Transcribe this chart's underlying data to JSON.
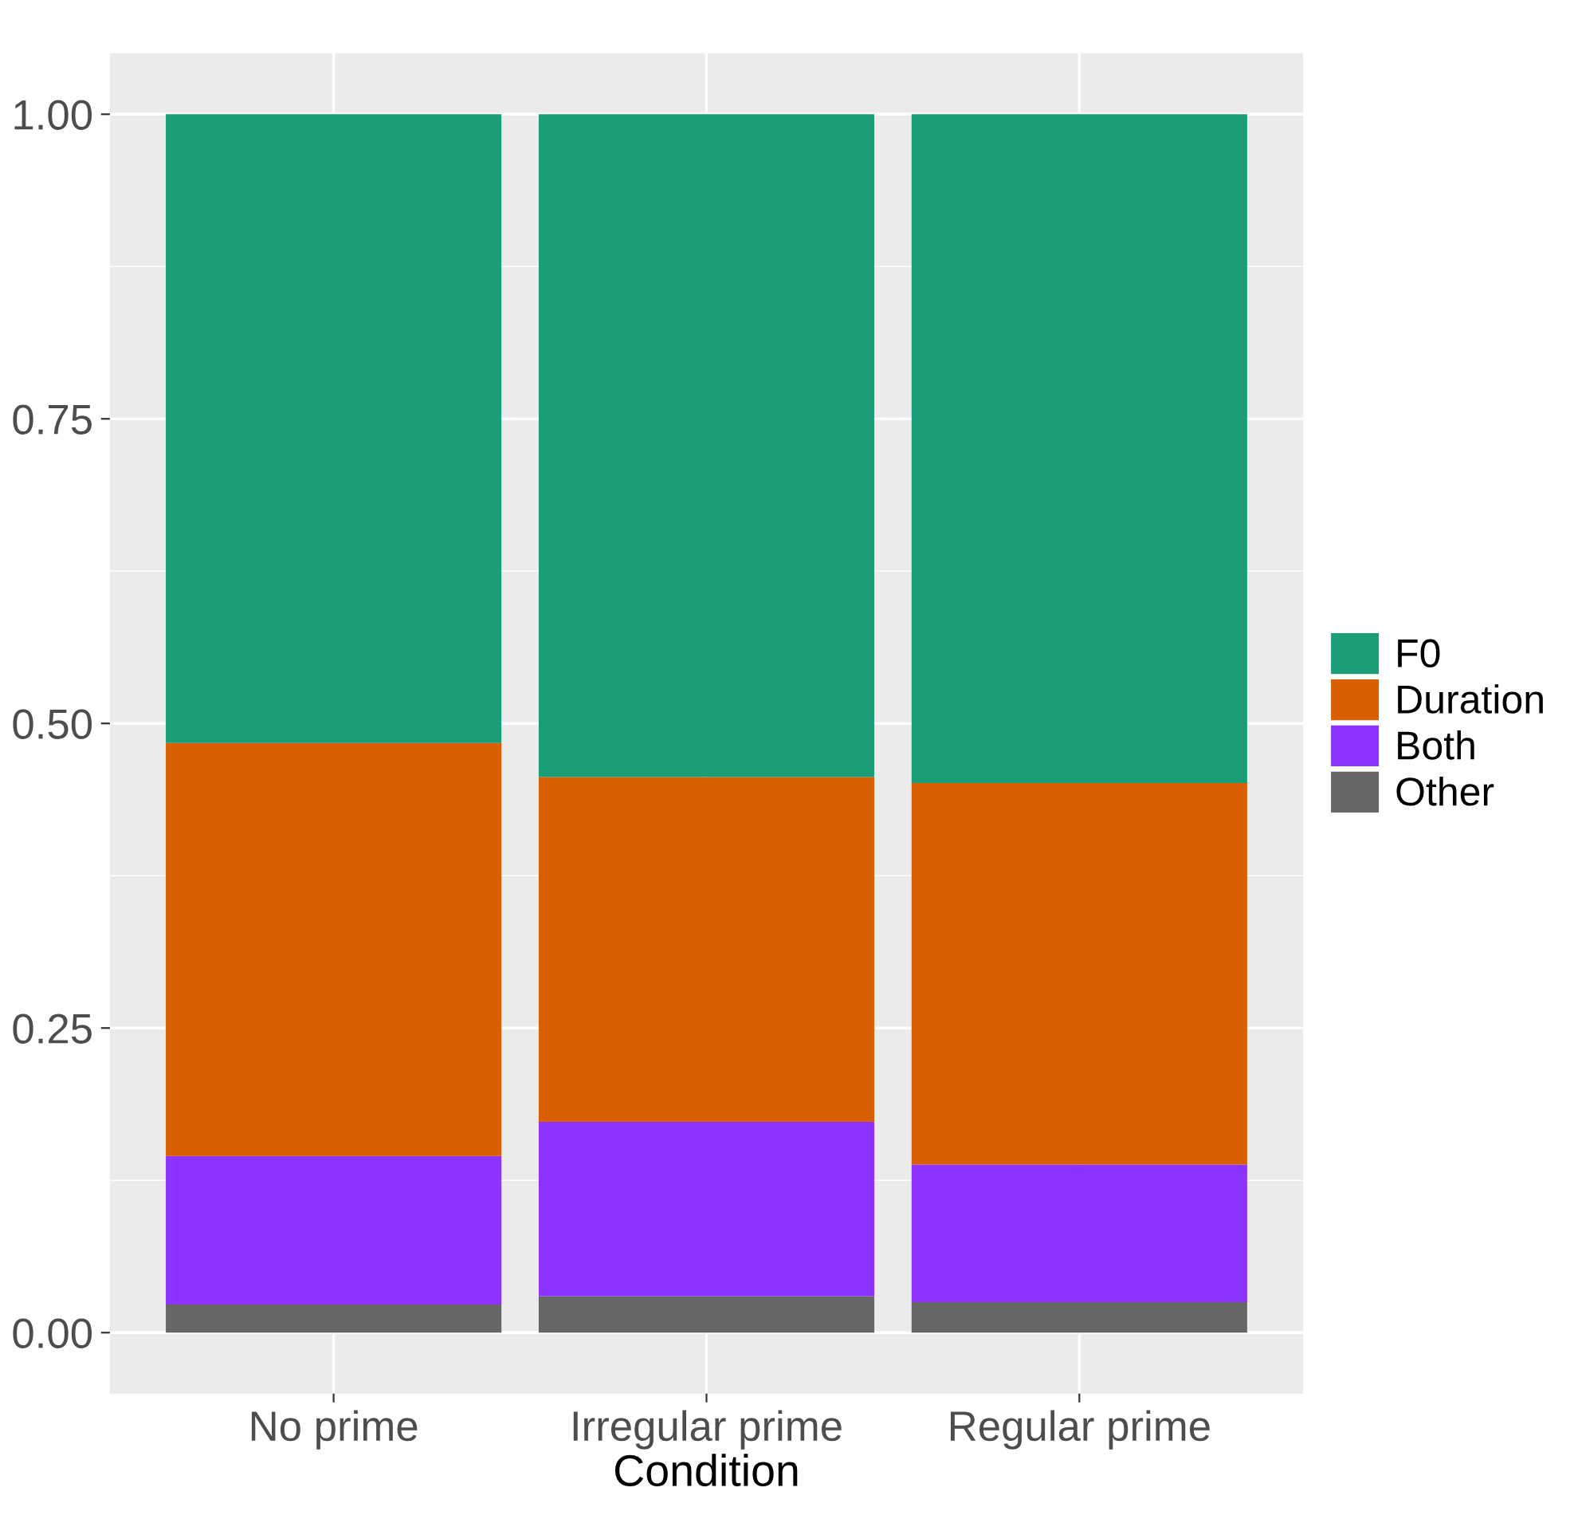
{
  "chart_data": {
    "type": "bar",
    "stacked": true,
    "xlabel": "Condition",
    "categories": [
      "No prime",
      "Irregular prime",
      "Regular prime"
    ],
    "series": [
      {
        "name": "Other",
        "color": "#666666",
        "values": [
          0.023,
          0.03,
          0.025
        ]
      },
      {
        "name": "Both",
        "color": "#8c33ff",
        "values": [
          0.122,
          0.143,
          0.113
        ]
      },
      {
        "name": "Duration",
        "color": "#d95f02",
        "values": [
          0.339,
          0.283,
          0.313
        ]
      },
      {
        "name": "F0",
        "color": "#1b9e77",
        "values": [
          0.516,
          0.544,
          0.549
        ]
      }
    ],
    "ylim": [
      -0.05,
      1.05
    ],
    "yticks": [
      {
        "value": 0,
        "label": "0.00"
      },
      {
        "value": 0.25,
        "label": "0.25"
      },
      {
        "value": 0.5,
        "label": "0.50"
      },
      {
        "value": 0.75,
        "label": "0.75"
      },
      {
        "value": 1,
        "label": "1.00"
      }
    ],
    "grid": true,
    "legend": "right"
  }
}
